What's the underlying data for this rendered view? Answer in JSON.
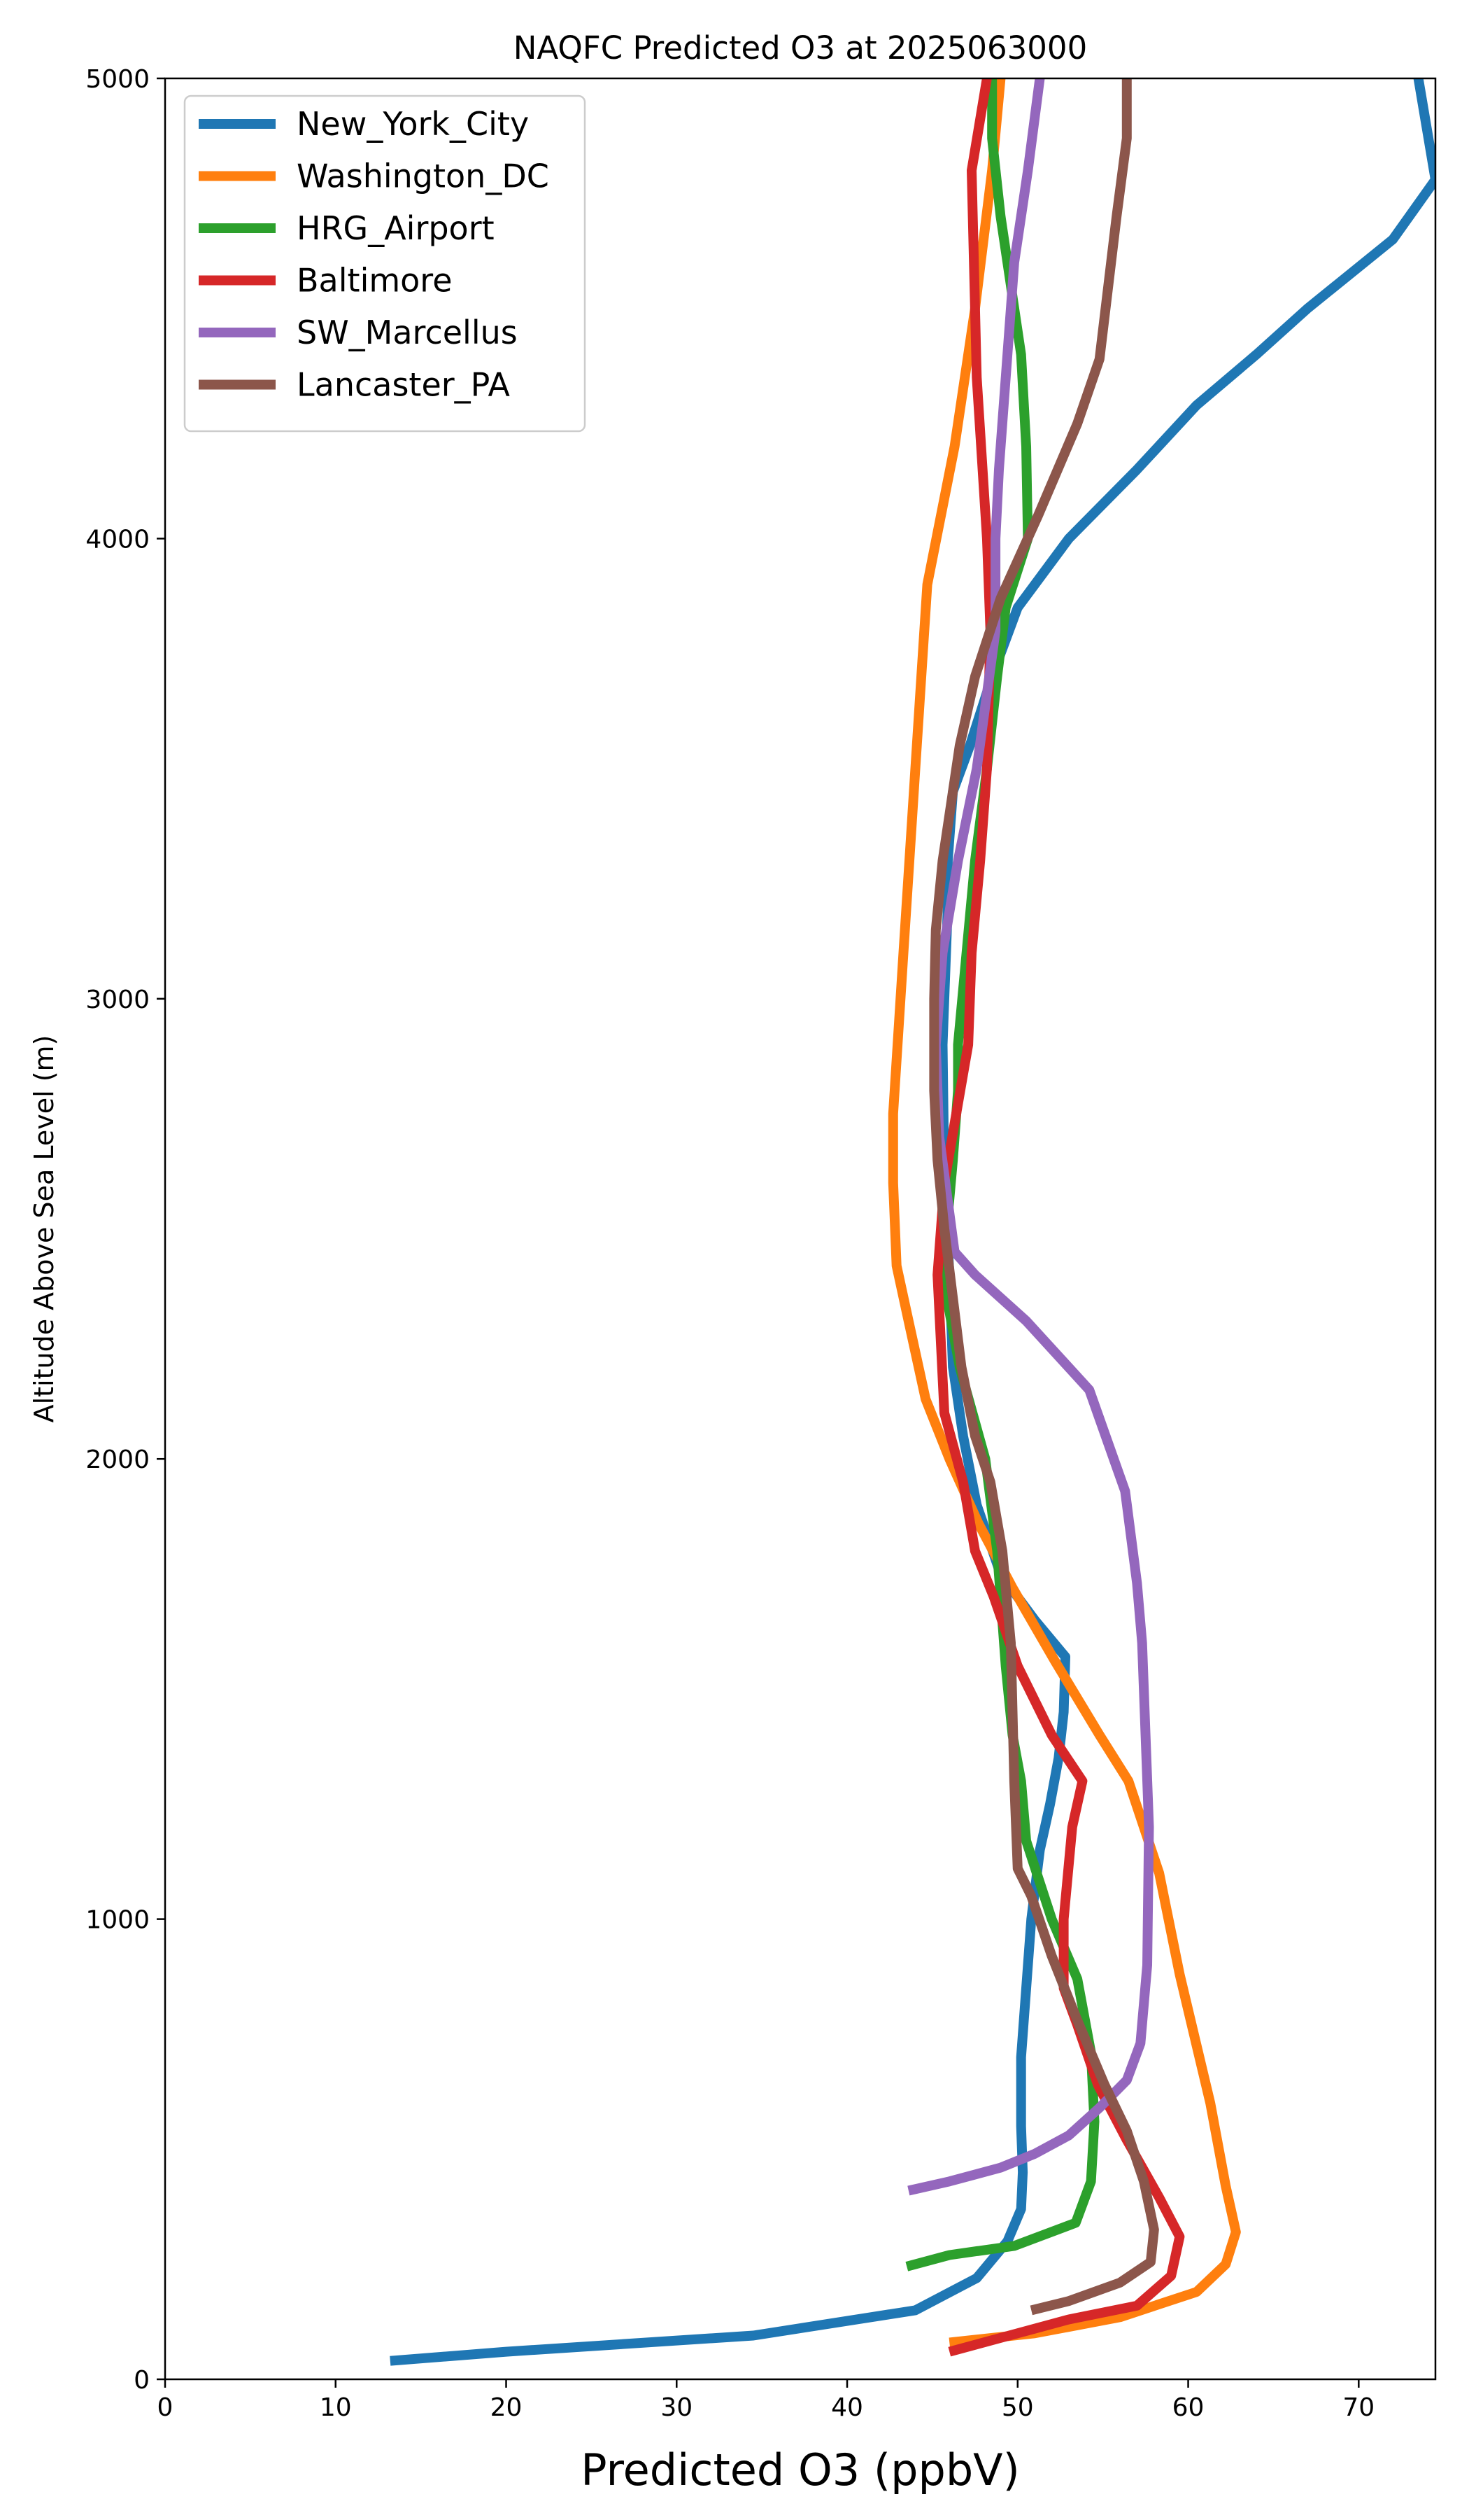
{
  "chart_data": {
    "type": "line",
    "title": "NAQFC Predicted O3 at 2025063000",
    "xlabel": "Predicted O3 (ppbV)",
    "ylabel": "Altitude Above Sea Level (m)",
    "xlim": [
      0,
      74.5
    ],
    "ylim": [
      0,
      5000
    ],
    "xticks": [
      "0",
      "10",
      "20",
      "30",
      "40",
      "50",
      "60",
      "70"
    ],
    "yticks": [
      "0",
      "1000",
      "2000",
      "3000",
      "4000",
      "5000"
    ],
    "legend_position": "upper-left",
    "grid": false,
    "series": [
      {
        "name": "New_York_City",
        "color": "#1f77b4",
        "points": [
          [
            13.2,
            40
          ],
          [
            20,
            60
          ],
          [
            34.5,
            95
          ],
          [
            44,
            150
          ],
          [
            47.6,
            220
          ],
          [
            49.4,
            300
          ],
          [
            50.2,
            370
          ],
          [
            50.3,
            450
          ],
          [
            50.2,
            550
          ],
          [
            50.2,
            700
          ],
          [
            50.5,
            850
          ],
          [
            50.8,
            1000
          ],
          [
            51.3,
            1150
          ],
          [
            51.9,
            1250
          ],
          [
            52.4,
            1350
          ],
          [
            52.7,
            1450
          ],
          [
            52.8,
            1570
          ],
          [
            51,
            1650
          ],
          [
            49,
            1750
          ],
          [
            47.6,
            1900
          ],
          [
            46.8,
            2050
          ],
          [
            46.2,
            2200
          ],
          [
            46,
            2400
          ],
          [
            45.7,
            2600
          ],
          [
            45.6,
            2900
          ],
          [
            45.8,
            3100
          ],
          [
            45.9,
            3200
          ],
          [
            45.9,
            3300
          ],
          [
            46.2,
            3450
          ],
          [
            47.2,
            3550
          ],
          [
            48.5,
            3700
          ],
          [
            50,
            3850
          ],
          [
            53,
            4000
          ],
          [
            57,
            4150
          ],
          [
            60.5,
            4290
          ],
          [
            64,
            4400
          ],
          [
            67,
            4500
          ],
          [
            72,
            4650
          ],
          [
            74.5,
            4780
          ],
          [
            73.5,
            5000
          ]
        ]
      },
      {
        "name": "Washington_DC",
        "color": "#ff7f0e",
        "points": [
          [
            46,
            80
          ],
          [
            51,
            100
          ],
          [
            56,
            135
          ],
          [
            60.5,
            190
          ],
          [
            62.2,
            250
          ],
          [
            62.8,
            320
          ],
          [
            62.2,
            420
          ],
          [
            61.3,
            600
          ],
          [
            59.5,
            880
          ],
          [
            58.3,
            1100
          ],
          [
            56.5,
            1300
          ],
          [
            54.8,
            1400
          ],
          [
            52.2,
            1560
          ],
          [
            49.7,
            1720
          ],
          [
            47.7,
            1860
          ],
          [
            46,
            2000
          ],
          [
            44.6,
            2130
          ],
          [
            43.6,
            2300
          ],
          [
            42.9,
            2420
          ],
          [
            42.7,
            2600
          ],
          [
            42.7,
            2750
          ],
          [
            43.3,
            3100
          ],
          [
            44,
            3500
          ],
          [
            44.7,
            3900
          ],
          [
            46.3,
            4200
          ],
          [
            47.5,
            4500
          ],
          [
            48.5,
            4800
          ],
          [
            49,
            5000
          ]
        ]
      },
      {
        "name": "HRG_Airport",
        "color": "#2ca02c",
        "points": [
          [
            43.5,
            245
          ],
          [
            46,
            270
          ],
          [
            49.8,
            290
          ],
          [
            53.4,
            340
          ],
          [
            54.3,
            430
          ],
          [
            54.5,
            560
          ],
          [
            54.3,
            710
          ],
          [
            53.5,
            870
          ],
          [
            52,
            1000
          ],
          [
            50.5,
            1170
          ],
          [
            50.2,
            1300
          ],
          [
            49.7,
            1400
          ],
          [
            49.3,
            1550
          ],
          [
            48.8,
            1800
          ],
          [
            48.1,
            2000
          ],
          [
            46.6,
            2200
          ],
          [
            45.6,
            2400
          ],
          [
            46.2,
            2650
          ],
          [
            46.5,
            2800
          ],
          [
            46.5,
            2900
          ],
          [
            47,
            3100
          ],
          [
            47.5,
            3300
          ],
          [
            48.2,
            3500
          ],
          [
            48.8,
            3700
          ],
          [
            49.3,
            3850
          ],
          [
            50.6,
            4000
          ],
          [
            50.5,
            4200
          ],
          [
            50.2,
            4400
          ],
          [
            49,
            4700
          ],
          [
            48.5,
            4870
          ],
          [
            48.5,
            5000
          ]
        ]
      },
      {
        "name": "Baltimore",
        "color": "#d62728",
        "points": [
          [
            46,
            60
          ],
          [
            50,
            100
          ],
          [
            53,
            130
          ],
          [
            57,
            160
          ],
          [
            59,
            225
          ],
          [
            59.5,
            310
          ],
          [
            58.3,
            395
          ],
          [
            56.4,
            520
          ],
          [
            54.7,
            640
          ],
          [
            53.5,
            770
          ],
          [
            52.7,
            850
          ],
          [
            52.7,
            1000
          ],
          [
            53.2,
            1200
          ],
          [
            53.8,
            1300
          ],
          [
            52,
            1400
          ],
          [
            50,
            1550
          ],
          [
            48.6,
            1700
          ],
          [
            47.5,
            1800
          ],
          [
            46.8,
            1950
          ],
          [
            45.7,
            2100
          ],
          [
            45.3,
            2400
          ],
          [
            45.7,
            2600
          ],
          [
            46.4,
            2750
          ],
          [
            47.1,
            2900
          ],
          [
            47.3,
            3100
          ],
          [
            47.8,
            3300
          ],
          [
            48.2,
            3500
          ],
          [
            48.4,
            3800
          ],
          [
            48.2,
            4000
          ],
          [
            47.6,
            4350
          ],
          [
            47.3,
            4800
          ],
          [
            48.2,
            5000
          ]
        ]
      },
      {
        "name": "SW_Marcellus",
        "color": "#9467bd",
        "points": [
          [
            43.6,
            410
          ],
          [
            46,
            430
          ],
          [
            49,
            460
          ],
          [
            51,
            490
          ],
          [
            53,
            530
          ],
          [
            54.8,
            590
          ],
          [
            56.4,
            650
          ],
          [
            57.2,
            730
          ],
          [
            57.6,
            900
          ],
          [
            57.7,
            1200
          ],
          [
            57.5,
            1400
          ],
          [
            57.3,
            1600
          ],
          [
            57,
            1730
          ],
          [
            56.3,
            1930
          ],
          [
            54.2,
            2150
          ],
          [
            50.5,
            2300
          ],
          [
            47.5,
            2400
          ],
          [
            46.3,
            2450
          ],
          [
            45.4,
            2700
          ],
          [
            45.2,
            2900
          ],
          [
            45.6,
            3100
          ],
          [
            46.5,
            3300
          ],
          [
            47.6,
            3500
          ],
          [
            48.7,
            3800
          ],
          [
            48.7,
            4000
          ],
          [
            48.9,
            4150
          ],
          [
            49.2,
            4300
          ],
          [
            49.8,
            4600
          ],
          [
            50.6,
            4800
          ],
          [
            51.3,
            5000
          ]
        ]
      },
      {
        "name": "Lancaster_PA",
        "color": "#8c564b",
        "points": [
          [
            50.8,
            150
          ],
          [
            53,
            170
          ],
          [
            56,
            210
          ],
          [
            57.8,
            255
          ],
          [
            58,
            325
          ],
          [
            57.4,
            430
          ],
          [
            56.4,
            540
          ],
          [
            55.1,
            640
          ],
          [
            53.5,
            780
          ],
          [
            52,
            920
          ],
          [
            50.8,
            1050
          ],
          [
            50,
            1110
          ],
          [
            49.8,
            1300
          ],
          [
            49.7,
            1450
          ],
          [
            49.6,
            1600
          ],
          [
            49.1,
            1800
          ],
          [
            48.4,
            1950
          ],
          [
            47.5,
            2050
          ],
          [
            46.7,
            2200
          ],
          [
            46.2,
            2350
          ],
          [
            45.7,
            2500
          ],
          [
            45.3,
            2650
          ],
          [
            45.1,
            2800
          ],
          [
            45.1,
            3000
          ],
          [
            45.2,
            3150
          ],
          [
            45.6,
            3300
          ],
          [
            46,
            3400
          ],
          [
            46.6,
            3550
          ],
          [
            47.5,
            3700
          ],
          [
            49,
            3870
          ],
          [
            51.2,
            4050
          ],
          [
            53.5,
            4250
          ],
          [
            54.8,
            4390
          ],
          [
            55.8,
            4700
          ],
          [
            56.4,
            4870
          ],
          [
            56.4,
            5000
          ]
        ]
      }
    ]
  }
}
